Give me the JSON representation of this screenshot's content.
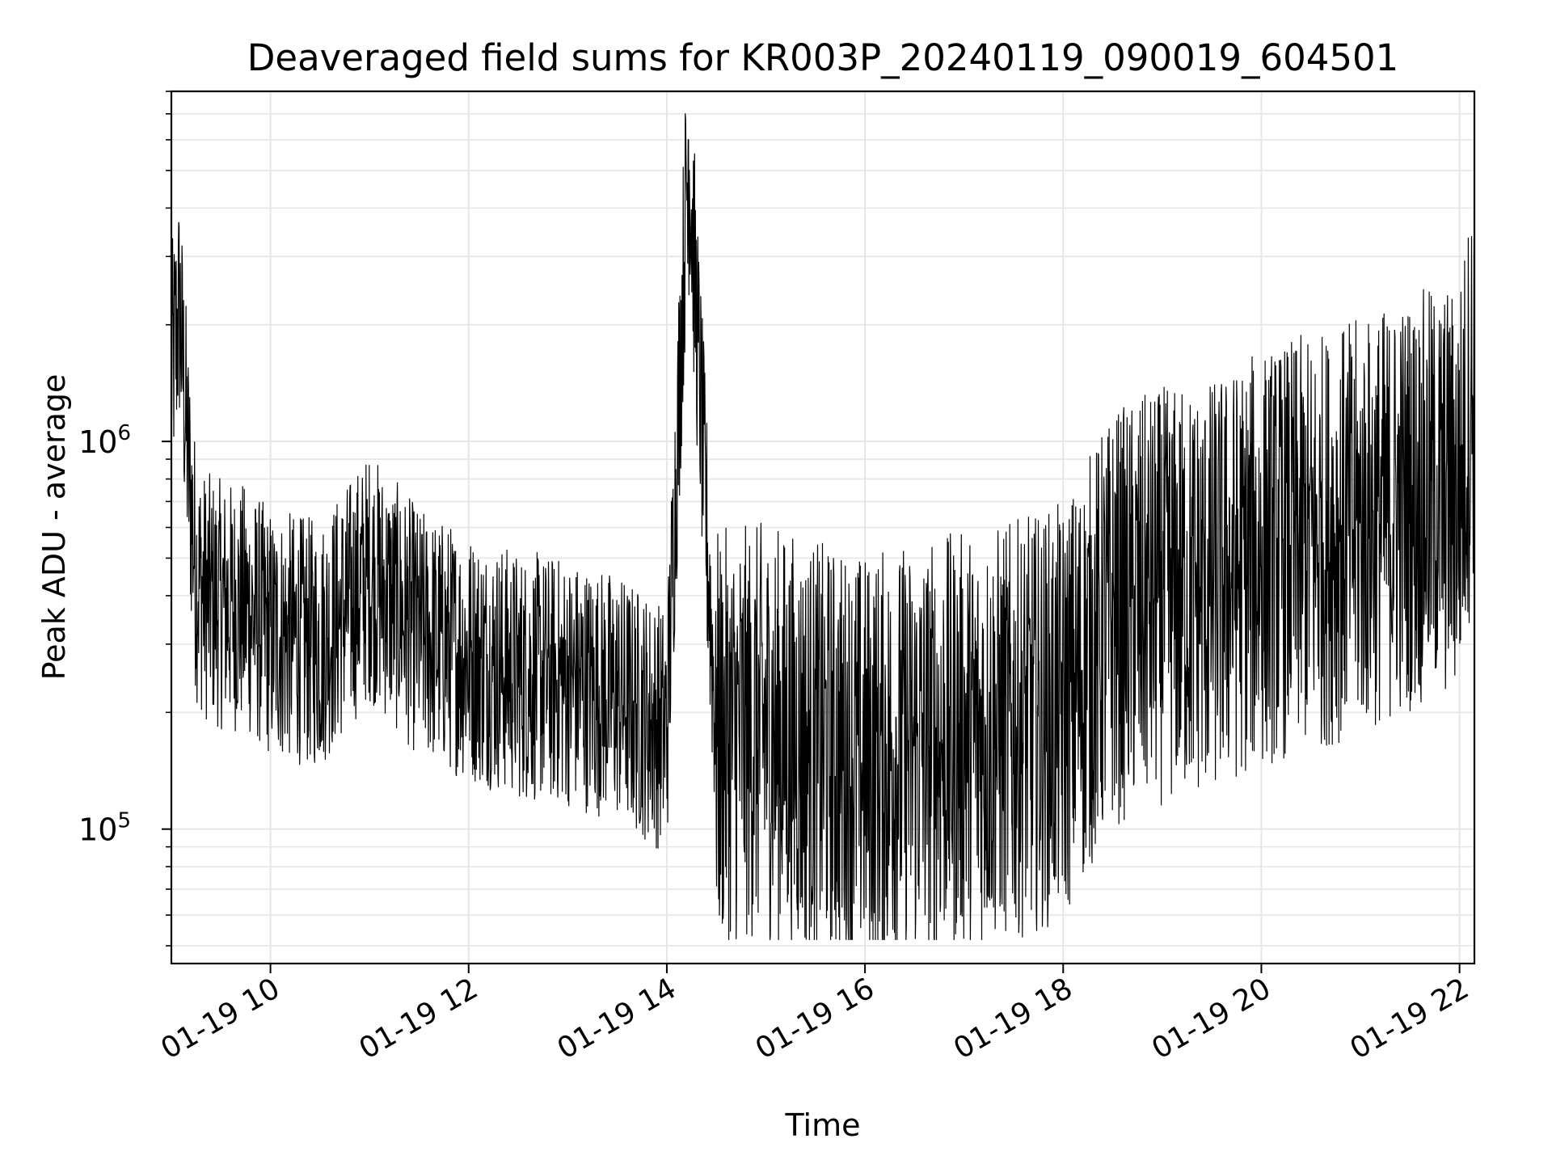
{
  "chart_data": {
    "type": "line",
    "title": "Deaveraged field sums for KR003P_20240119_090019_604501",
    "xlabel": "Time",
    "ylabel": "Peak ADU - average",
    "yscale": "log",
    "grid": true,
    "legend": "none",
    "line_color": "#000000",
    "grid_color": "#e6e6e6",
    "x_range": [
      "2024-01-19 09:00",
      "2024-01-19 22:09"
    ],
    "y_range": [
      45000,
      8000000
    ],
    "x_ticks": [
      {
        "value": "2024-01-19 10:00",
        "label": "01-19 10"
      },
      {
        "value": "2024-01-19 12:00",
        "label": "01-19 12"
      },
      {
        "value": "2024-01-19 14:00",
        "label": "01-19 14"
      },
      {
        "value": "2024-01-19 16:00",
        "label": "01-19 16"
      },
      {
        "value": "2024-01-19 18:00",
        "label": "01-19 18"
      },
      {
        "value": "2024-01-19 20:00",
        "label": "01-19 20"
      },
      {
        "value": "2024-01-19 22:00",
        "label": "01-19 22"
      }
    ],
    "y_ticks": [
      {
        "value": 100000,
        "base": "10",
        "exp": "5"
      },
      {
        "value": 1000000,
        "base": "10",
        "exp": "6"
      }
    ],
    "series": [
      {
        "values_note_omitted": null,
        "x": [
          "2024-01-19 09:00",
          "2024-01-19 09:05",
          "2024-01-19 09:10",
          "2024-01-19 09:15",
          "2024-01-19 09:20",
          "2024-01-19 09:30",
          "2024-01-19 09:45",
          "2024-01-19 10:00",
          "2024-01-19 10:30",
          "2024-01-19 11:00",
          "2024-01-19 11:30",
          "2024-01-19 12:00",
          "2024-01-19 12:30",
          "2024-01-19 13:00",
          "2024-01-19 13:30",
          "2024-01-19 14:00",
          "2024-01-19 14:13",
          "2024-01-19 14:30",
          "2024-01-19 15:00",
          "2024-01-19 15:30",
          "2024-01-19 16:00",
          "2024-01-19 16:30",
          "2024-01-19 17:00",
          "2024-01-19 17:30",
          "2024-01-19 18:00",
          "2024-01-19 18:30",
          "2024-01-19 19:00",
          "2024-01-19 19:30",
          "2024-01-19 20:00",
          "2024-01-19 20:30",
          "2024-01-19 21:00",
          "2024-01-19 21:30",
          "2024-01-19 22:00",
          "2024-01-19 22:09"
        ],
        "y": [
          1500000,
          2200000,
          900000,
          450000,
          400000,
          380000,
          370000,
          320000,
          300000,
          450000,
          320000,
          280000,
          250000,
          240000,
          220000,
          180000,
          6000000,
          170000,
          180000,
          160000,
          150000,
          160000,
          170000,
          180000,
          200000,
          350000,
          400000,
          420000,
          500000,
          550000,
          600000,
          700000,
          750000,
          1500000
        ]
      }
    ]
  }
}
